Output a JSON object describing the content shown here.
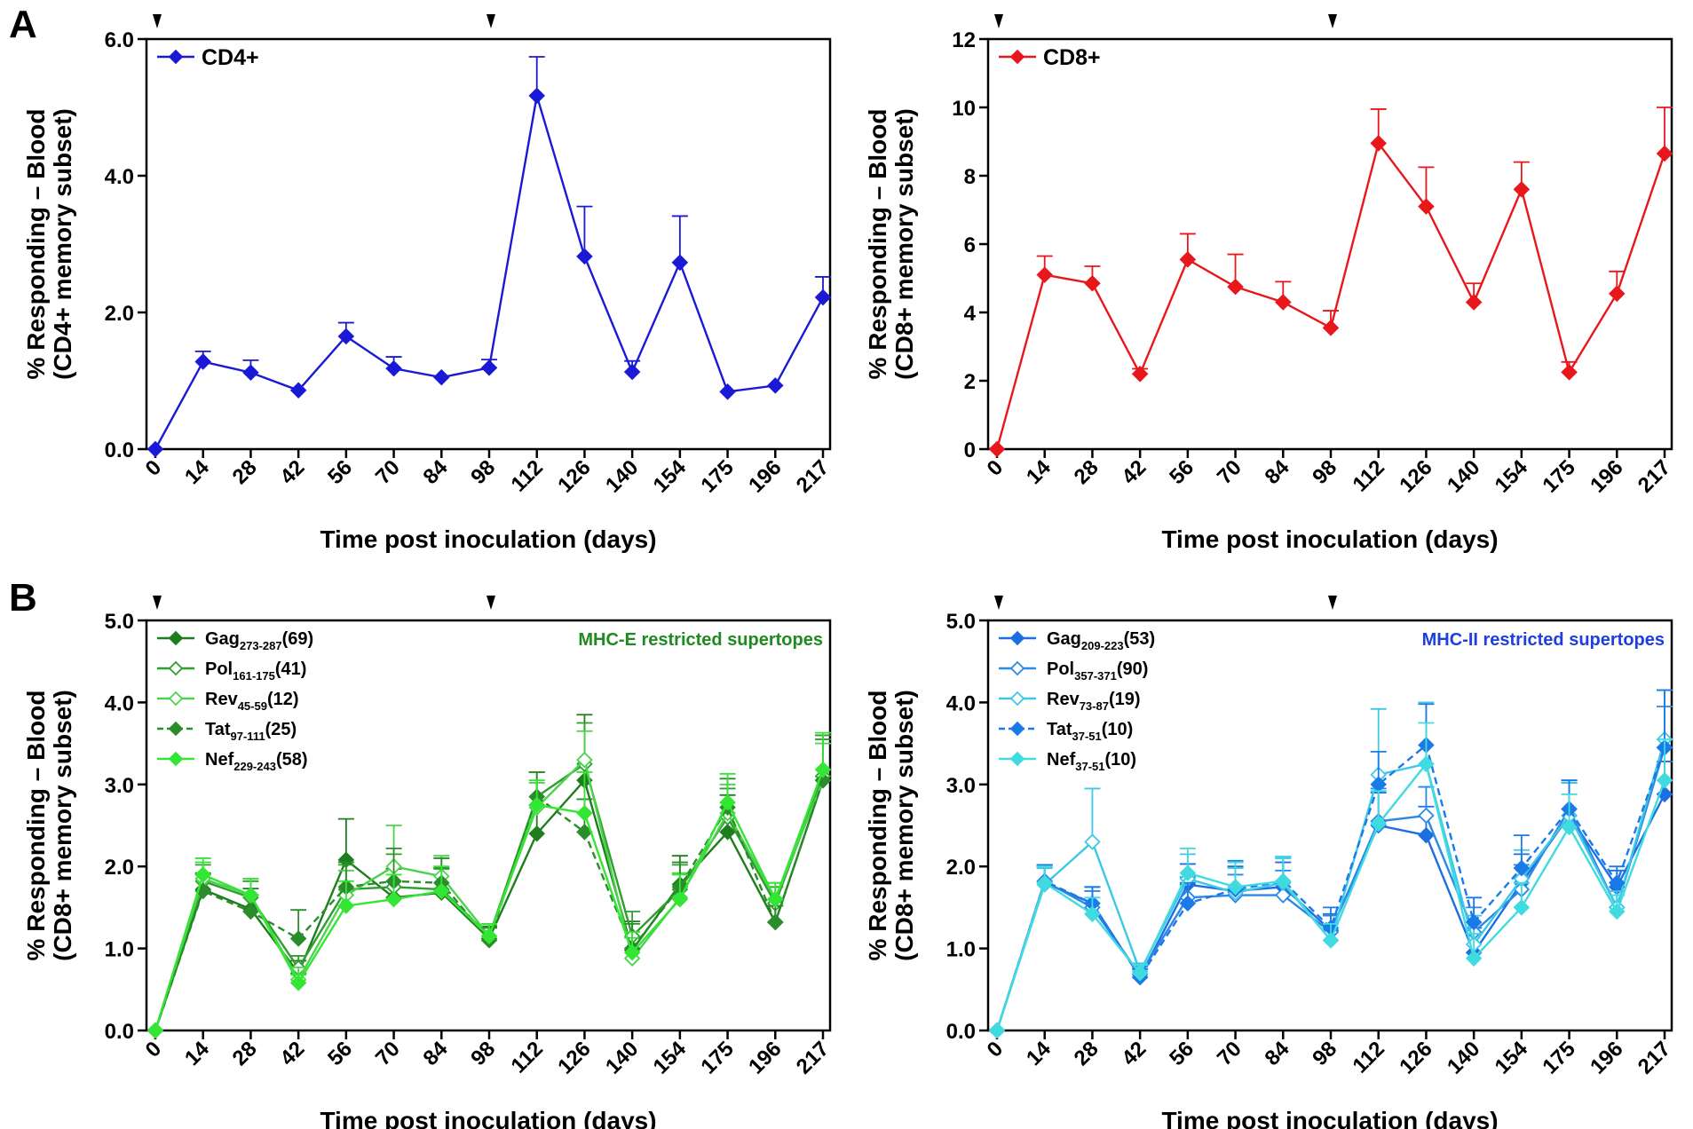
{
  "panel_labels": [
    "A",
    "B"
  ],
  "chart_data": [
    {
      "type": "line",
      "panel": "A",
      "categories": [
        "0",
        "14",
        "28",
        "42",
        "56",
        "70",
        "84",
        "98",
        "112",
        "126",
        "140",
        "154",
        "175",
        "196",
        "217"
      ],
      "xlabel": "Time post inoculation (days)",
      "ylabel_line1": "% Responding – Blood",
      "ylabel_line2": "(CD4+ memory subset)",
      "ylim": [
        0,
        6
      ],
      "yticks": [
        0,
        2,
        4,
        6
      ],
      "ytick_labels": [
        "0.0",
        "2.0",
        "4.0",
        "6.0"
      ],
      "arrow_markers_at": [
        "0",
        "98"
      ],
      "legend_position": "top-left",
      "series": [
        {
          "name": "CD4+",
          "color": "#1a1ad6",
          "dash": false,
          "marker": "filled",
          "values": [
            0.0,
            1.28,
            1.12,
            0.86,
            1.65,
            1.18,
            1.05,
            1.19,
            5.17,
            2.82,
            1.13,
            2.73,
            0.84,
            0.93,
            2.22
          ],
          "err": [
            0.0,
            0.15,
            0.18,
            0.0,
            0.2,
            0.17,
            0.0,
            0.12,
            0.57,
            0.73,
            0.16,
            0.68,
            0.0,
            0.0,
            0.3
          ]
        }
      ]
    },
    {
      "type": "line",
      "panel": "A",
      "categories": [
        "0",
        "14",
        "28",
        "42",
        "56",
        "70",
        "84",
        "98",
        "112",
        "126",
        "140",
        "154",
        "175",
        "196",
        "217"
      ],
      "xlabel": "Time post inoculation (days)",
      "ylabel_line1": "% Responding – Blood",
      "ylabel_line2": "(CD8+ memory subset)",
      "ylim": [
        0,
        12
      ],
      "yticks": [
        0,
        2,
        4,
        6,
        8,
        10,
        12
      ],
      "ytick_labels": [
        "0",
        "2",
        "4",
        "6",
        "8",
        "10",
        "12"
      ],
      "arrow_markers_at": [
        "0",
        "98"
      ],
      "legend_position": "top-left",
      "series": [
        {
          "name": "CD8+",
          "color": "#e8171b",
          "dash": false,
          "marker": "filled",
          "values": [
            0.0,
            5.1,
            4.85,
            2.2,
            5.55,
            4.75,
            4.3,
            3.55,
            8.95,
            7.1,
            4.3,
            7.6,
            2.25,
            4.55,
            8.65
          ],
          "err": [
            0.0,
            0.55,
            0.5,
            0.15,
            0.75,
            0.95,
            0.6,
            0.5,
            1.0,
            1.15,
            0.55,
            0.8,
            0.3,
            0.65,
            1.35
          ]
        }
      ]
    },
    {
      "type": "line",
      "panel": "B",
      "categories": [
        "0",
        "14",
        "28",
        "42",
        "56",
        "70",
        "84",
        "98",
        "112",
        "126",
        "140",
        "154",
        "175",
        "196",
        "217"
      ],
      "xlabel": "Time post inoculation (days)",
      "ylabel_line1": "% Responding – Blood",
      "ylabel_line2": "(CD8+ memory subset)",
      "ylim": [
        0,
        5
      ],
      "yticks": [
        0,
        1,
        2,
        3,
        4,
        5
      ],
      "ytick_labels": [
        "0.0",
        "1.0",
        "2.0",
        "3.0",
        "4.0",
        "5.0"
      ],
      "arrow_markers_at": [
        "0",
        "98"
      ],
      "annotation": "MHC-E restricted supertopes",
      "annotation_color": "#1f8a1f",
      "legend_position": "top-left",
      "series": [
        {
          "name": "Gag",
          "sub": "273-287",
          "count": "(69)",
          "color": "#1e7d1e",
          "dash": false,
          "marker": "filled",
          "values": [
            0,
            1.72,
            1.48,
            0.7,
            2.08,
            1.62,
            1.68,
            1.12,
            2.4,
            3.05,
            0.98,
            1.78,
            2.42,
            1.32,
            3.05
          ],
          "err": [
            0,
            0.2,
            0.25,
            0.15,
            0.5,
            0.35,
            0.3,
            0.15,
            0.35,
            0.8,
            0.35,
            0.35,
            0.45,
            0.2,
            0.55
          ]
        },
        {
          "name": "Pol",
          "sub": "161-175",
          "count": "(41)",
          "color": "#2e9e2e",
          "dash": false,
          "marker": "open",
          "values": [
            0,
            1.82,
            1.62,
            0.76,
            1.72,
            1.75,
            1.72,
            1.15,
            2.85,
            3.25,
            1.15,
            1.72,
            2.6,
            1.55,
            3.1
          ],
          "err": [
            0,
            0.2,
            0.2,
            0.15,
            0.3,
            0.4,
            0.25,
            0.15,
            0.3,
            0.5,
            0.3,
            0.3,
            0.35,
            0.2,
            0.5
          ]
        },
        {
          "name": "Rev",
          "sub": "45-59",
          "count": "(12)",
          "color": "#4cd24c",
          "dash": false,
          "marker": "open",
          "values": [
            0,
            1.85,
            1.65,
            0.62,
            1.65,
            2.0,
            1.88,
            1.15,
            2.72,
            3.3,
            0.88,
            1.62,
            2.65,
            1.6,
            3.05
          ],
          "err": [
            0,
            0.2,
            0.2,
            0.15,
            0.3,
            0.5,
            0.25,
            0.15,
            0.3,
            0.35,
            0.25,
            0.3,
            0.35,
            0.2,
            0.45
          ]
        },
        {
          "name": "Tat",
          "sub": "97-111",
          "count": "(25)",
          "color": "#2a8c2a",
          "dash": true,
          "marker": "filled",
          "values": [
            0,
            1.7,
            1.45,
            1.12,
            1.75,
            1.82,
            1.8,
            1.1,
            2.85,
            2.42,
            1.0,
            1.75,
            2.72,
            1.32,
            3.05
          ],
          "err": [
            0,
            0.2,
            0.2,
            0.35,
            0.3,
            0.4,
            0.3,
            0.15,
            0.3,
            0.4,
            0.3,
            0.3,
            0.35,
            0.2,
            0.5
          ]
        },
        {
          "name": "Nef",
          "sub": "229-243",
          "count": "(58)",
          "color": "#33e633",
          "dash": false,
          "marker": "filled",
          "values": [
            0,
            1.9,
            1.65,
            0.58,
            1.52,
            1.6,
            1.7,
            1.15,
            2.75,
            2.65,
            0.95,
            1.6,
            2.78,
            1.6,
            3.18
          ],
          "err": [
            0,
            0.2,
            0.2,
            0.1,
            0.3,
            0.3,
            0.3,
            0.15,
            0.3,
            0.5,
            0.25,
            0.3,
            0.35,
            0.2,
            0.45
          ]
        }
      ]
    },
    {
      "type": "line",
      "panel": "B",
      "categories": [
        "0",
        "14",
        "28",
        "42",
        "56",
        "70",
        "84",
        "98",
        "112",
        "126",
        "140",
        "154",
        "175",
        "196",
        "217"
      ],
      "xlabel": "Time post inoculation (days)",
      "ylabel_line1": "% Responding – Blood",
      "ylabel_line2": "(CD8+ memory subset)",
      "ylim": [
        0,
        5
      ],
      "yticks": [
        0,
        1,
        2,
        3,
        4,
        5
      ],
      "ytick_labels": [
        "0.0",
        "1.0",
        "2.0",
        "3.0",
        "4.0",
        "5.0"
      ],
      "arrow_markers_at": [
        "0",
        "98"
      ],
      "annotation": "MHC-II restricted supertopes",
      "annotation_color": "#1f3ee0",
      "legend_position": "top-left",
      "series": [
        {
          "name": "Gag",
          "sub": "209-223",
          "count": "(53)",
          "color": "#1c6fe0",
          "dash": false,
          "marker": "filled",
          "values": [
            0,
            1.8,
            1.55,
            0.65,
            1.78,
            1.7,
            1.75,
            1.22,
            2.5,
            2.38,
            0.95,
            1.8,
            2.62,
            1.75,
            2.88
          ],
          "err": [
            0,
            0.2,
            0.2,
            0.1,
            0.25,
            0.3,
            0.3,
            0.2,
            0.4,
            0.35,
            0.3,
            0.35,
            0.4,
            0.2,
            0.4
          ]
        },
        {
          "name": "Pol",
          "sub": "357-371",
          "count": "(90)",
          "color": "#2a88e6",
          "dash": false,
          "marker": "open",
          "values": [
            0,
            1.82,
            1.5,
            0.68,
            1.62,
            1.65,
            1.65,
            1.2,
            2.55,
            2.62,
            1.2,
            1.72,
            2.7,
            1.5,
            3.45
          ],
          "err": [
            0,
            0.2,
            0.2,
            0.1,
            0.25,
            0.25,
            0.3,
            0.2,
            0.4,
            0.35,
            0.3,
            0.3,
            0.35,
            0.2,
            0.5
          ]
        },
        {
          "name": "Rev",
          "sub": "73-87",
          "count": "(19)",
          "color": "#3cc8e6",
          "dash": false,
          "marker": "open",
          "values": [
            0,
            1.78,
            2.3,
            0.72,
            1.85,
            1.68,
            1.8,
            1.1,
            3.12,
            3.25,
            1.05,
            1.85,
            2.62,
            1.5,
            3.55
          ],
          "err": [
            0,
            0.2,
            0.65,
            0.1,
            0.3,
            0.3,
            0.3,
            0.2,
            0.8,
            0.75,
            0.35,
            0.35,
            0.4,
            0.2,
            0.6
          ]
        },
        {
          "name": "Tat",
          "sub": "37-51",
          "count": "(10)",
          "color": "#1a7ae8",
          "dash": true,
          "marker": "filled",
          "values": [
            0,
            1.82,
            1.55,
            0.65,
            1.55,
            1.72,
            1.82,
            1.25,
            3.0,
            3.48,
            1.32,
            1.98,
            2.7,
            1.8,
            3.45
          ],
          "err": [
            0,
            0.2,
            0.2,
            0.1,
            0.25,
            0.35,
            0.3,
            0.25,
            0.4,
            0.5,
            0.3,
            0.4,
            0.35,
            0.2,
            0.7
          ]
        },
        {
          "name": "Nef",
          "sub": "37-51",
          "count": "(10)",
          "color": "#40dbe0",
          "dash": false,
          "marker": "filled",
          "values": [
            0,
            1.8,
            1.42,
            0.7,
            1.92,
            1.75,
            1.82,
            1.1,
            2.52,
            3.25,
            0.88,
            1.5,
            2.48,
            1.45,
            3.05
          ],
          "err": [
            0,
            0.2,
            0.2,
            0.1,
            0.3,
            0.3,
            0.3,
            0.2,
            0.4,
            0.5,
            0.3,
            0.3,
            0.4,
            0.2,
            0.5
          ]
        }
      ]
    }
  ]
}
